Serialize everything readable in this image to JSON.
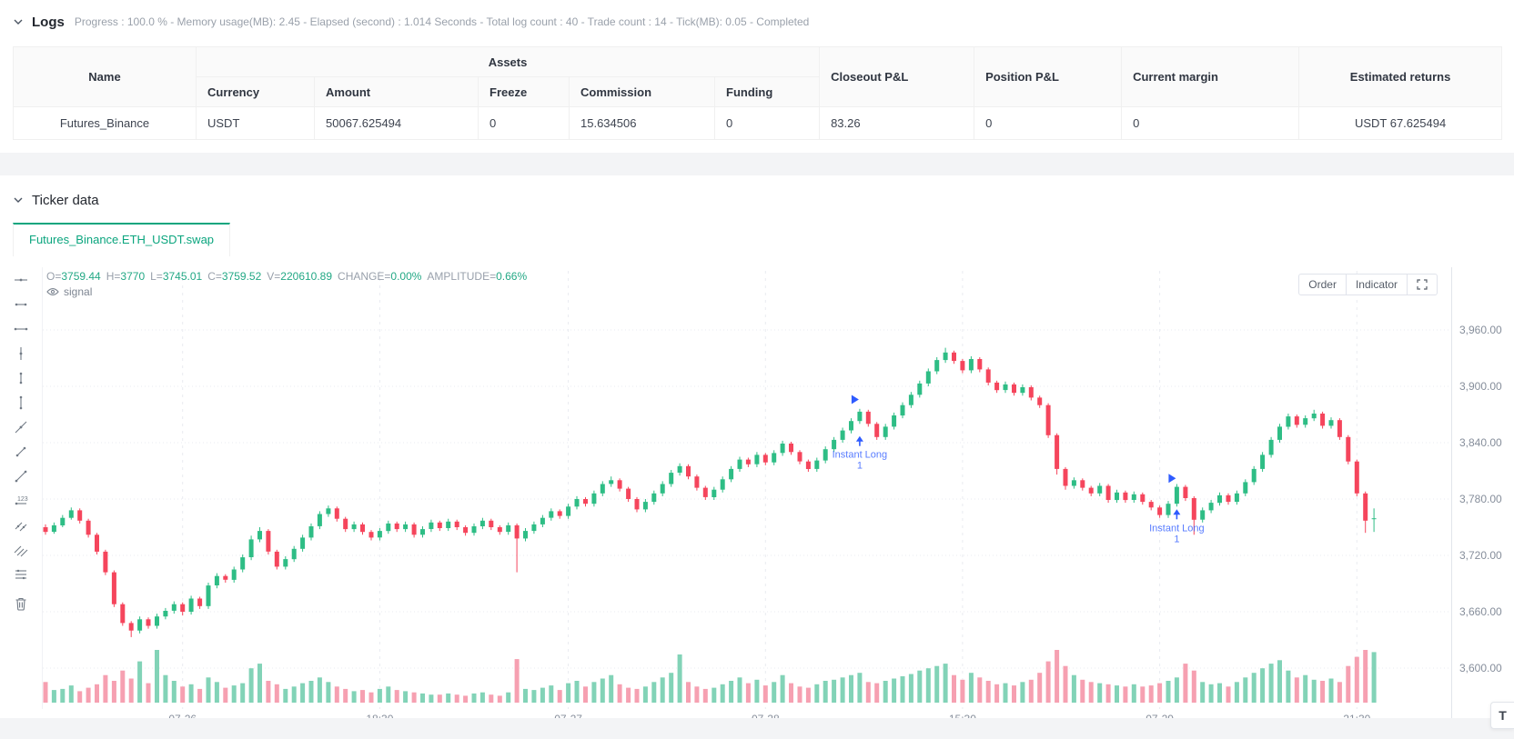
{
  "logs": {
    "title": "Logs",
    "stats": "Progress : 100.0 %  - Memory usage(MB): 2.45  - Elapsed (second) :  1.014  Seconds - Total log count : 40 - Trade count : 14 - Tick(MB): 0.05 - Completed"
  },
  "table": {
    "headers": {
      "name": "Name",
      "assets": "Assets",
      "currency": "Currency",
      "amount": "Amount",
      "freeze": "Freeze",
      "commission": "Commission",
      "funding": "Funding",
      "closeout_pnl": "Closeout P&L",
      "position_pnl": "Position P&L",
      "current_margin": "Current margin",
      "estimated_returns": "Estimated returns"
    },
    "rows": [
      {
        "name": "Futures_Binance",
        "currency": "USDT",
        "amount": "50067.625494",
        "freeze": "0",
        "commission": "15.634506",
        "funding": "0",
        "closeout_pnl": "83.26",
        "position_pnl": "0",
        "current_margin": "0",
        "estimated_returns": "USDT 67.625494"
      }
    ]
  },
  "ticker": {
    "title": "Ticker data",
    "tab": "Futures_Binance.ETH_USDT.swap",
    "accent_color": "#0ba57e"
  },
  "chart": {
    "legend": [
      {
        "label": "O=",
        "value": "3759.44"
      },
      {
        "label": "H=",
        "value": "3770"
      },
      {
        "label": "L=",
        "value": "3745.01"
      },
      {
        "label": "C=",
        "value": "3759.52"
      },
      {
        "label": "V=",
        "value": "220610.89"
      },
      {
        "label": "CHANGE=",
        "value": "0.00%"
      },
      {
        "label": "AMPLITUDE=",
        "value": "0.66%"
      }
    ],
    "overlay_label": "signal",
    "controls": {
      "order": "Order",
      "indicator": "Indicator"
    },
    "floating_button": "T"
  },
  "chart_data": {
    "type": "candlestick",
    "symbol": "Futures_Binance.ETH_USDT.swap",
    "interval_hint": "intraday",
    "grid": true,
    "legend_position": "top-left",
    "y_axis": {
      "min": 3600,
      "max": 3960,
      "step": 60
    },
    "y_ticks": [
      "3,960.00",
      "3,900.00",
      "3,840.00",
      "3,780.00",
      "3,720.00",
      "3,660.00",
      "3,600.00"
    ],
    "x_ticks": [
      {
        "label": "07-26",
        "index": 16
      },
      {
        "label": "18:30",
        "index": 39
      },
      {
        "label": "07-27",
        "index": 61
      },
      {
        "label": "07-28",
        "index": 84
      },
      {
        "label": "15:30",
        "index": 107
      },
      {
        "label": "07-29",
        "index": 130
      },
      {
        "label": "21:30",
        "index": 153
      }
    ],
    "colors": {
      "up": "#2ebd85",
      "down": "#f5455c",
      "vol_up": "#82d3b7",
      "vol_down": "#f6a0b1",
      "grid": "#e9ebf0",
      "axis_text": "#868e9b",
      "annotation": "#2e5bff",
      "legend_value": "#23a885"
    },
    "volume_scale": "thousands",
    "annotations": [
      {
        "index": 95,
        "flag_price": 3886,
        "arrow_price": 3848,
        "label": "Instant Long",
        "quantity": "1"
      },
      {
        "index": 132,
        "flag_price": 3802,
        "arrow_price": 3770,
        "label": "Instant Long",
        "quantity": "1"
      }
    ],
    "candles": [
      [
        3750,
        3753,
        3742,
        3745,
        90
      ],
      [
        3745,
        3755,
        3743,
        3752,
        55
      ],
      [
        3752,
        3763,
        3750,
        3760,
        60
      ],
      [
        3760,
        3771,
        3758,
        3768,
        75
      ],
      [
        3768,
        3770,
        3754,
        3757,
        50
      ],
      [
        3757,
        3759,
        3739,
        3742,
        65
      ],
      [
        3742,
        3744,
        3721,
        3724,
        80
      ],
      [
        3724,
        3726,
        3699,
        3702,
        120
      ],
      [
        3702,
        3704,
        3665,
        3668,
        95
      ],
      [
        3668,
        3670,
        3645,
        3648,
        140
      ],
      [
        3648,
        3650,
        3633,
        3640,
        105
      ],
      [
        3640,
        3655,
        3637,
        3652,
        180
      ],
      [
        3652,
        3654,
        3642,
        3645,
        85
      ],
      [
        3645,
        3658,
        3642,
        3655,
        230
      ],
      [
        3655,
        3664,
        3652,
        3661,
        120
      ],
      [
        3661,
        3671,
        3658,
        3668,
        95
      ],
      [
        3668,
        3670,
        3656,
        3660,
        70
      ],
      [
        3660,
        3677,
        3657,
        3674,
        80
      ],
      [
        3674,
        3676,
        3663,
        3666,
        60
      ],
      [
        3666,
        3691,
        3663,
        3688,
        110
      ],
      [
        3688,
        3701,
        3685,
        3698,
        90
      ],
      [
        3698,
        3700,
        3691,
        3694,
        65
      ],
      [
        3694,
        3708,
        3691,
        3705,
        75
      ],
      [
        3705,
        3721,
        3702,
        3718,
        85
      ],
      [
        3718,
        3741,
        3715,
        3737,
        150
      ],
      [
        3737,
        3750,
        3734,
        3746,
        170
      ],
      [
        3746,
        3748,
        3721,
        3724,
        95
      ],
      [
        3724,
        3726,
        3705,
        3708,
        80
      ],
      [
        3708,
        3719,
        3705,
        3716,
        60
      ],
      [
        3716,
        3730,
        3713,
        3727,
        70
      ],
      [
        3727,
        3742,
        3724,
        3739,
        85
      ],
      [
        3739,
        3754,
        3736,
        3751,
        95
      ],
      [
        3751,
        3767,
        3748,
        3764,
        110
      ],
      [
        3764,
        3773,
        3761,
        3770,
        90
      ],
      [
        3770,
        3772,
        3756,
        3759,
        70
      ],
      [
        3759,
        3761,
        3745,
        3748,
        60
      ],
      [
        3748,
        3756,
        3745,
        3753,
        50
      ],
      [
        3753,
        3755,
        3742,
        3745,
        55
      ],
      [
        3745,
        3747,
        3736,
        3739,
        45
      ],
      [
        3739,
        3749,
        3736,
        3746,
        60
      ],
      [
        3746,
        3757,
        3743,
        3754,
        70
      ],
      [
        3754,
        3756,
        3745,
        3748,
        55
      ],
      [
        3748,
        3756,
        3745,
        3753,
        50
      ],
      [
        3753,
        3755,
        3739,
        3742,
        45
      ],
      [
        3742,
        3751,
        3739,
        3748,
        40
      ],
      [
        3748,
        3758,
        3745,
        3755,
        35
      ],
      [
        3755,
        3757,
        3746,
        3749,
        35
      ],
      [
        3749,
        3759,
        3746,
        3756,
        40
      ],
      [
        3756,
        3758,
        3747,
        3750,
        35
      ],
      [
        3750,
        3752,
        3741,
        3744,
        30
      ],
      [
        3744,
        3754,
        3741,
        3751,
        40
      ],
      [
        3751,
        3760,
        3748,
        3757,
        45
      ],
      [
        3757,
        3759,
        3747,
        3750,
        35
      ],
      [
        3750,
        3752,
        3742,
        3745,
        30
      ],
      [
        3745,
        3755,
        3742,
        3752,
        45
      ],
      [
        3752,
        3754,
        3702,
        3738,
        190
      ],
      [
        3738,
        3749,
        3735,
        3746,
        60
      ],
      [
        3746,
        3756,
        3743,
        3753,
        55
      ],
      [
        3753,
        3763,
        3750,
        3760,
        65
      ],
      [
        3760,
        3770,
        3757,
        3767,
        75
      ],
      [
        3767,
        3769,
        3759,
        3762,
        55
      ],
      [
        3762,
        3775,
        3759,
        3772,
        85
      ],
      [
        3772,
        3783,
        3769,
        3780,
        95
      ],
      [
        3780,
        3782,
        3772,
        3775,
        70
      ],
      [
        3775,
        3789,
        3772,
        3786,
        90
      ],
      [
        3786,
        3799,
        3783,
        3796,
        105
      ],
      [
        3796,
        3804,
        3793,
        3800,
        120
      ],
      [
        3800,
        3802,
        3788,
        3791,
        80
      ],
      [
        3791,
        3793,
        3777,
        3780,
        65
      ],
      [
        3780,
        3782,
        3766,
        3769,
        60
      ],
      [
        3769,
        3780,
        3766,
        3777,
        70
      ],
      [
        3777,
        3789,
        3774,
        3786,
        90
      ],
      [
        3786,
        3799,
        3783,
        3796,
        110
      ],
      [
        3796,
        3811,
        3793,
        3808,
        130
      ],
      [
        3808,
        3818,
        3805,
        3815,
        210
      ],
      [
        3815,
        3817,
        3801,
        3804,
        90
      ],
      [
        3804,
        3806,
        3789,
        3792,
        70
      ],
      [
        3792,
        3794,
        3779,
        3782,
        60
      ],
      [
        3782,
        3793,
        3779,
        3790,
        65
      ],
      [
        3790,
        3804,
        3787,
        3801,
        80
      ],
      [
        3801,
        3815,
        3798,
        3812,
        95
      ],
      [
        3812,
        3825,
        3809,
        3822,
        110
      ],
      [
        3822,
        3824,
        3814,
        3817,
        85
      ],
      [
        3817,
        3830,
        3814,
        3827,
        100
      ],
      [
        3827,
        3829,
        3816,
        3819,
        75
      ],
      [
        3819,
        3832,
        3816,
        3829,
        90
      ],
      [
        3829,
        3842,
        3826,
        3839,
        120
      ],
      [
        3839,
        3841,
        3827,
        3830,
        85
      ],
      [
        3830,
        3832,
        3817,
        3820,
        70
      ],
      [
        3820,
        3822,
        3809,
        3812,
        65
      ],
      [
        3812,
        3824,
        3809,
        3821,
        80
      ],
      [
        3821,
        3836,
        3818,
        3833,
        95
      ],
      [
        3833,
        3846,
        3830,
        3843,
        100
      ],
      [
        3843,
        3856,
        3840,
        3853,
        110
      ],
      [
        3853,
        3866,
        3850,
        3863,
        120
      ],
      [
        3863,
        3876,
        3860,
        3873,
        130
      ],
      [
        3873,
        3875,
        3857,
        3860,
        90
      ],
      [
        3860,
        3862,
        3843,
        3846,
        85
      ],
      [
        3846,
        3860,
        3843,
        3857,
        95
      ],
      [
        3857,
        3872,
        3854,
        3869,
        105
      ],
      [
        3869,
        3883,
        3866,
        3880,
        115
      ],
      [
        3880,
        3894,
        3877,
        3891,
        125
      ],
      [
        3891,
        3906,
        3888,
        3903,
        140
      ],
      [
        3903,
        3919,
        3900,
        3916,
        150
      ],
      [
        3916,
        3931,
        3913,
        3928,
        160
      ],
      [
        3928,
        3941,
        3925,
        3936,
        170
      ],
      [
        3936,
        3938,
        3924,
        3927,
        120
      ],
      [
        3927,
        3929,
        3914,
        3917,
        100
      ],
      [
        3917,
        3932,
        3914,
        3929,
        130
      ],
      [
        3929,
        3931,
        3915,
        3918,
        110
      ],
      [
        3918,
        3920,
        3901,
        3904,
        95
      ],
      [
        3904,
        3906,
        3893,
        3896,
        80
      ],
      [
        3896,
        3905,
        3893,
        3902,
        85
      ],
      [
        3902,
        3904,
        3890,
        3893,
        75
      ],
      [
        3893,
        3902,
        3890,
        3899,
        90
      ],
      [
        3899,
        3901,
        3885,
        3888,
        100
      ],
      [
        3888,
        3890,
        3877,
        3880,
        130
      ],
      [
        3880,
        3882,
        3845,
        3848,
        180
      ],
      [
        3848,
        3850,
        3806,
        3812,
        230
      ],
      [
        3812,
        3814,
        3790,
        3794,
        160
      ],
      [
        3794,
        3803,
        3791,
        3800,
        120
      ],
      [
        3800,
        3802,
        3789,
        3792,
        100
      ],
      [
        3792,
        3794,
        3783,
        3786,
        90
      ],
      [
        3786,
        3797,
        3783,
        3794,
        85
      ],
      [
        3794,
        3796,
        3776,
        3779,
        80
      ],
      [
        3779,
        3790,
        3776,
        3787,
        75
      ],
      [
        3787,
        3789,
        3776,
        3779,
        70
      ],
      [
        3779,
        3788,
        3776,
        3785,
        80
      ],
      [
        3785,
        3787,
        3774,
        3777,
        70
      ],
      [
        3777,
        3779,
        3768,
        3771,
        75
      ],
      [
        3771,
        3773,
        3760,
        3763,
        85
      ],
      [
        3763,
        3778,
        3760,
        3775,
        95
      ],
      [
        3775,
        3796,
        3772,
        3793,
        110
      ],
      [
        3793,
        3795,
        3778,
        3781,
        170
      ],
      [
        3781,
        3783,
        3742,
        3758,
        140
      ],
      [
        3758,
        3771,
        3755,
        3768,
        90
      ],
      [
        3768,
        3779,
        3765,
        3776,
        80
      ],
      [
        3776,
        3787,
        3773,
        3784,
        85
      ],
      [
        3784,
        3786,
        3774,
        3777,
        70
      ],
      [
        3777,
        3789,
        3774,
        3786,
        90
      ],
      [
        3786,
        3801,
        3783,
        3798,
        110
      ],
      [
        3798,
        3815,
        3795,
        3812,
        130
      ],
      [
        3812,
        3830,
        3809,
        3827,
        150
      ],
      [
        3827,
        3846,
        3824,
        3843,
        170
      ],
      [
        3843,
        3860,
        3840,
        3857,
        185
      ],
      [
        3857,
        3871,
        3854,
        3868,
        140
      ],
      [
        3868,
        3870,
        3856,
        3859,
        110
      ],
      [
        3859,
        3869,
        3856,
        3866,
        120
      ],
      [
        3866,
        3875,
        3863,
        3871,
        100
      ],
      [
        3871,
        3873,
        3855,
        3858,
        95
      ],
      [
        3858,
        3867,
        3855,
        3864,
        105
      ],
      [
        3864,
        3866,
        3843,
        3846,
        90
      ],
      [
        3846,
        3848,
        3817,
        3820,
        160
      ],
      [
        3820,
        3822,
        3783,
        3786,
        200
      ],
      [
        3786,
        3788,
        3744,
        3757,
        230
      ],
      [
        3759.44,
        3770,
        3745.01,
        3759.52,
        220.61
      ]
    ]
  }
}
